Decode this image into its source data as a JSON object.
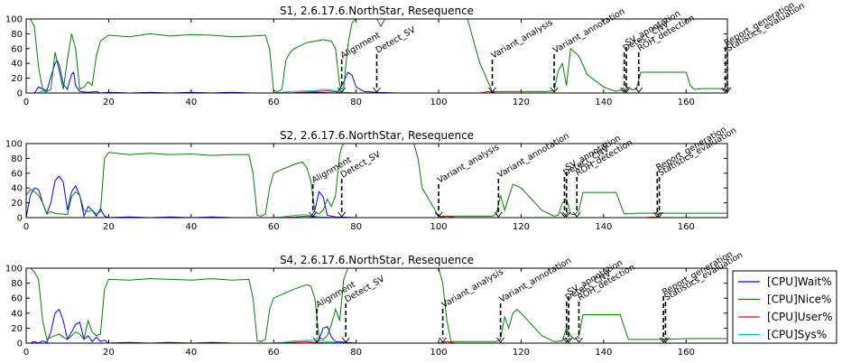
{
  "chart_data": [
    {
      "type": "line",
      "title": "S1, 2.6.17.6.NorthStar, Resequence",
      "xlim": [
        0,
        170
      ],
      "ylim": [
        0,
        100
      ],
      "xticks": [
        "0",
        "20",
        "40",
        "60",
        "80",
        "100",
        "120",
        "140",
        "160"
      ],
      "yticks": [
        "0",
        "20",
        "40",
        "60",
        "80",
        "100"
      ],
      "series": [
        {
          "name": "[CPU]Wait%",
          "color": "#0000ff",
          "x": [
            0,
            2,
            3,
            5,
            6,
            7,
            7.5,
            8,
            9,
            10,
            10.5,
            11,
            11.5,
            12,
            13,
            15,
            17,
            18,
            20,
            25,
            30,
            35,
            40,
            45,
            50,
            55,
            60,
            65,
            70,
            75,
            76,
            77,
            78,
            79,
            80,
            82,
            85,
            90,
            100,
            110,
            120,
            130,
            140,
            150,
            160,
            170
          ],
          "y": [
            0,
            0,
            8,
            3,
            22,
            40,
            44,
            38,
            12,
            5,
            16,
            25,
            28,
            10,
            2,
            1,
            2,
            0,
            1,
            0,
            1,
            0,
            1,
            0,
            1,
            0,
            0,
            0,
            1,
            0,
            5,
            15,
            28,
            24,
            8,
            2,
            1,
            0,
            0,
            0,
            0,
            0,
            0,
            0,
            0,
            0
          ]
        },
        {
          "name": "[CPU]Nice%",
          "color": "#008000",
          "x": [
            0,
            1,
            2,
            3,
            4,
            5,
            6,
            7,
            8,
            9,
            10,
            11,
            12,
            13,
            14,
            15,
            16,
            17,
            18,
            20,
            25,
            30,
            35,
            40,
            45,
            50,
            55,
            58,
            59,
            60,
            61,
            62,
            63,
            64,
            65,
            68,
            70,
            72,
            74,
            75,
            76,
            76.5,
            77,
            78,
            79,
            80,
            81,
            82,
            85,
            86,
            87,
            88,
            100,
            107,
            108,
            110,
            113,
            120,
            126,
            128,
            129,
            130,
            131,
            132,
            134,
            136,
            140,
            143,
            144,
            145,
            146,
            147,
            148,
            149,
            150,
            155,
            160,
            161,
            162,
            164,
            166,
            168,
            170
          ],
          "y": [
            100,
            100,
            90,
            35,
            5,
            2,
            5,
            55,
            30,
            5,
            45,
            80,
            60,
            5,
            8,
            15,
            10,
            50,
            70,
            78,
            76,
            80,
            77,
            79,
            78,
            76,
            77,
            78,
            60,
            3,
            2,
            5,
            45,
            55,
            60,
            68,
            70,
            72,
            70,
            60,
            10,
            5,
            8,
            65,
            95,
            100,
            100,
            100,
            100,
            90,
            100,
            100,
            100,
            100,
            80,
            40,
            2,
            2,
            2,
            3,
            30,
            40,
            10,
            60,
            50,
            25,
            8,
            2,
            4,
            2,
            8,
            4,
            6,
            28,
            28,
            28,
            28,
            10,
            5,
            6,
            6,
            6,
            4
          ]
        },
        {
          "name": "[CPU]User%",
          "color": "#ff0000",
          "x": [
            0,
            60,
            62,
            64,
            70,
            73,
            76,
            80,
            85,
            110,
            112,
            114,
            170
          ],
          "y": [
            0,
            0,
            1,
            0,
            2,
            3,
            1,
            0,
            0,
            0,
            2,
            0,
            0
          ]
        },
        {
          "name": "[CPU]Sys%",
          "color": "#00bfbf",
          "x": [
            0,
            3,
            4,
            5,
            60,
            62,
            64,
            70,
            72,
            74,
            76,
            78,
            170
          ],
          "y": [
            0,
            0,
            3,
            0,
            0,
            1,
            2,
            3,
            5,
            4,
            2,
            0,
            0
          ]
        }
      ],
      "annotations": [
        {
          "text": "Alignment",
          "x": 76.5
        },
        {
          "text": "Detect_SV",
          "x": 85
        },
        {
          "text": "Variant_analysis",
          "x": 113
        },
        {
          "text": "Variant_annotation",
          "x": 128
        },
        {
          "text": "Detect_CNV",
          "x": 145
        },
        {
          "text": "SV_annotation",
          "x": 145.5
        },
        {
          "text": "ROH_detection",
          "x": 148.5
        },
        {
          "text": "Report_generation",
          "x": 169.5
        },
        {
          "text": "Statistics_evaluation",
          "x": 170
        }
      ]
    },
    {
      "type": "line",
      "title": "S2, 2.6.17.6.NorthStar, Resequence",
      "xlim": [
        0,
        170
      ],
      "ylim": [
        0,
        100
      ],
      "xticks": [
        "0",
        "20",
        "40",
        "60",
        "80",
        "100",
        "120",
        "140",
        "160"
      ],
      "yticks": [
        "0",
        "20",
        "40",
        "60",
        "80",
        "100"
      ],
      "series": [
        {
          "name": "[CPU]Wait%",
          "color": "#0000ff",
          "x": [
            0,
            1,
            2,
            3,
            4,
            5,
            6,
            7,
            8,
            9,
            10,
            11,
            12,
            13,
            14,
            15,
            16,
            17,
            18,
            19,
            20,
            25,
            30,
            35,
            40,
            45,
            50,
            55,
            60,
            65,
            69,
            70,
            71,
            72,
            73,
            75,
            80,
            90,
            170
          ],
          "y": [
            0,
            30,
            40,
            38,
            20,
            5,
            20,
            50,
            56,
            48,
            10,
            35,
            43,
            30,
            2,
            15,
            10,
            2,
            12,
            2,
            0,
            1,
            0,
            1,
            0,
            1,
            0,
            0,
            0,
            0,
            0,
            10,
            35,
            28,
            3,
            1,
            0,
            0,
            0
          ]
        },
        {
          "name": "[CPU]Nice%",
          "color": "#008000",
          "x": [
            0,
            1,
            2,
            3,
            4,
            5,
            6,
            7,
            8,
            9,
            10,
            11,
            12,
            13,
            14,
            15,
            16,
            17,
            18,
            19,
            20,
            25,
            30,
            35,
            40,
            45,
            50,
            54,
            55,
            56,
            57,
            58,
            59,
            60,
            62,
            65,
            67,
            68,
            69,
            70,
            71,
            72,
            73,
            74,
            75,
            76,
            76.5,
            77,
            78,
            80,
            90,
            94,
            95,
            96,
            100,
            113,
            114,
            115,
            116,
            118,
            120,
            125,
            128,
            129,
            130,
            131,
            132,
            133,
            134,
            135,
            140,
            142,
            143,
            145,
            148,
            150,
            155,
            160,
            165,
            170
          ],
          "y": [
            30,
            38,
            35,
            30,
            20,
            5,
            8,
            6,
            5,
            5,
            4,
            28,
            35,
            30,
            10,
            8,
            10,
            5,
            8,
            80,
            88,
            85,
            87,
            85,
            86,
            84,
            85,
            85,
            60,
            3,
            2,
            5,
            40,
            60,
            65,
            72,
            75,
            68,
            50,
            8,
            5,
            10,
            25,
            15,
            30,
            85,
            95,
            100,
            100,
            100,
            100,
            100,
            80,
            40,
            2,
            2,
            5,
            30,
            10,
            45,
            40,
            10,
            2,
            3,
            20,
            25,
            5,
            4,
            10,
            34,
            34,
            34,
            34,
            5,
            6,
            6,
            6,
            6,
            6,
            6
          ]
        },
        {
          "name": "[CPU]User%",
          "color": "#ff0000",
          "x": [
            0,
            60,
            65,
            68,
            70,
            75,
            100,
            102,
            104,
            150,
            152,
            154,
            170
          ],
          "y": [
            0,
            0,
            1,
            2,
            1,
            0,
            0,
            2,
            0,
            0,
            1,
            0,
            0
          ]
        },
        {
          "name": "[CPU]Sys%",
          "color": "#00bfbf",
          "x": [
            0,
            60,
            62,
            65,
            67,
            69,
            71,
            75,
            170
          ],
          "y": [
            0,
            0,
            1,
            3,
            4,
            3,
            1,
            0,
            0
          ]
        }
      ],
      "annotations": [
        {
          "text": "Alignment",
          "x": 69.5
        },
        {
          "text": "Detect_SV",
          "x": 76.5
        },
        {
          "text": "Variant_analysis",
          "x": 100
        },
        {
          "text": "Variant_annotation",
          "x": 114.5
        },
        {
          "text": "Detect_CNV",
          "x": 130.5
        },
        {
          "text": "SV_annotation",
          "x": 131
        },
        {
          "text": "ROH_detection",
          "x": 133.5
        },
        {
          "text": "Report_generation",
          "x": 153
        },
        {
          "text": "Statistics_evaluation",
          "x": 153.5
        }
      ]
    },
    {
      "type": "line",
      "title": "S4, 2.6.17.6.NorthStar, Resequence",
      "xlim": [
        0,
        170
      ],
      "ylim": [
        0,
        100
      ],
      "xticks": [
        "0",
        "20",
        "40",
        "60",
        "80",
        "100",
        "120",
        "140",
        "160"
      ],
      "yticks": [
        "0",
        "20",
        "40",
        "60",
        "80",
        "100"
      ],
      "series": [
        {
          "name": "[CPU]Wait%",
          "color": "#0000ff",
          "x": [
            0,
            1,
            2,
            3,
            4,
            5,
            6,
            7,
            8,
            9,
            10,
            11,
            12,
            13,
            14,
            15,
            16,
            17,
            18,
            19,
            20,
            25,
            30,
            35,
            40,
            45,
            50,
            55,
            60,
            65,
            70,
            71,
            72,
            73,
            74,
            75,
            80,
            170
          ],
          "y": [
            0,
            0,
            2,
            0,
            3,
            1,
            15,
            40,
            45,
            30,
            5,
            15,
            25,
            28,
            5,
            10,
            2,
            8,
            2,
            4,
            0,
            1,
            0,
            1,
            0,
            1,
            0,
            0,
            0,
            0,
            0,
            5,
            20,
            22,
            8,
            2,
            0,
            0
          ]
        },
        {
          "name": "[CPU]Nice%",
          "color": "#008000",
          "x": [
            0,
            1,
            2,
            3,
            4,
            5,
            6,
            7,
            8,
            9,
            10,
            11,
            12,
            13,
            14,
            15,
            16,
            17,
            18,
            19,
            20,
            25,
            30,
            35,
            40,
            45,
            50,
            54,
            55,
            56,
            57,
            58,
            59,
            60,
            62,
            65,
            68,
            69,
            70,
            71,
            72,
            73,
            74,
            75,
            76,
            77,
            78,
            80,
            95,
            100,
            101,
            102,
            103,
            114,
            115,
            116,
            117,
            118,
            119,
            120,
            125,
            128,
            130,
            131,
            132,
            133,
            134,
            135,
            140,
            143,
            144,
            146,
            150,
            155,
            160,
            165,
            170
          ],
          "y": [
            100,
            100,
            95,
            85,
            30,
            5,
            8,
            10,
            12,
            8,
            5,
            10,
            15,
            12,
            5,
            30,
            15,
            10,
            12,
            72,
            85,
            84,
            86,
            85,
            84,
            86,
            84,
            85,
            60,
            3,
            2,
            5,
            45,
            60,
            65,
            72,
            78,
            76,
            60,
            8,
            5,
            10,
            25,
            45,
            30,
            85,
            100,
            100,
            100,
            100,
            80,
            30,
            2,
            2,
            5,
            35,
            20,
            40,
            45,
            40,
            10,
            2,
            3,
            20,
            10,
            5,
            10,
            38,
            38,
            38,
            38,
            5,
            5,
            5,
            6,
            6,
            6
          ]
        },
        {
          "name": "[CPU]User%",
          "color": "#ff0000",
          "x": [
            0,
            60,
            64,
            68,
            70,
            74,
            100,
            102,
            104,
            170
          ],
          "y": [
            0,
            0,
            1,
            2,
            1,
            0,
            0,
            2,
            0,
            0
          ]
        },
        {
          "name": "[CPU]Sys%",
          "color": "#00bfbf",
          "x": [
            0,
            60,
            62,
            65,
            68,
            70,
            73,
            76,
            170
          ],
          "y": [
            0,
            0,
            1,
            3,
            4,
            4,
            2,
            0,
            0
          ]
        }
      ],
      "annotations": [
        {
          "text": "Alignment",
          "x": 70.5
        },
        {
          "text": "Detect_SV",
          "x": 77.5
        },
        {
          "text": "Variant_analysis",
          "x": 101
        },
        {
          "text": "Variant_annotation",
          "x": 115
        },
        {
          "text": "Detect_CNV",
          "x": 131
        },
        {
          "text": "SV_annotation",
          "x": 131.5
        },
        {
          "text": "ROH_detection",
          "x": 134
        },
        {
          "text": "Report_generation",
          "x": 154.5
        },
        {
          "text": "Statistics_evaluation",
          "x": 155
        }
      ]
    }
  ],
  "legend": {
    "placement": "right of bottom panel",
    "items": [
      {
        "label": "[CPU]Wait%",
        "color": "#0000ff"
      },
      {
        "label": "[CPU]Nice%",
        "color": "#008000"
      },
      {
        "label": "[CPU]User%",
        "color": "#ff0000"
      },
      {
        "label": "[CPU]Sys%",
        "color": "#00bfbf"
      }
    ]
  }
}
